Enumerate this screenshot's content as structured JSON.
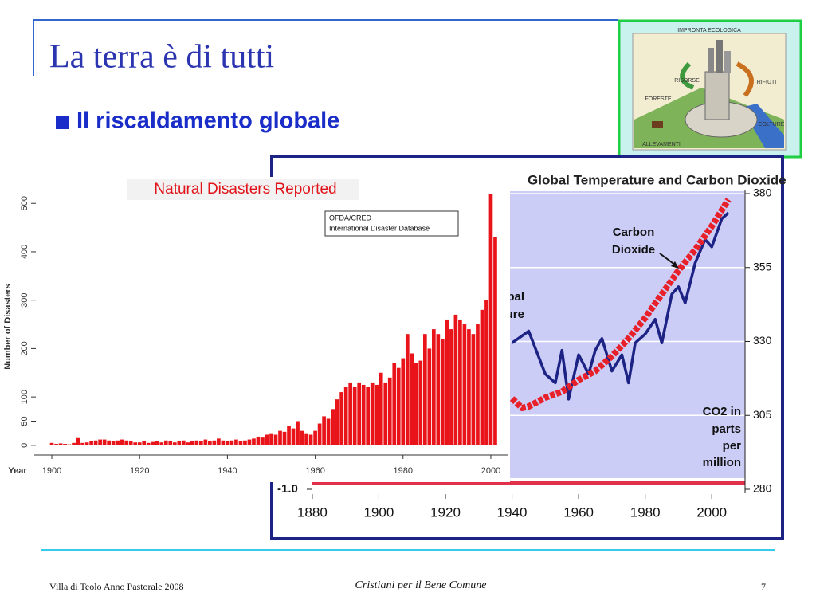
{
  "slide": {
    "title": "La terra è di tutti",
    "bullet": "Il riscaldamento globale",
    "footer_left": "Villa di Teolo Anno Pastorale 2008",
    "footer_center": "Cristiani per il Bene Comune",
    "page_number": "7"
  },
  "image_labels": [
    "IMPRONTA ECOLOGICA",
    "RISORSE",
    "RIFIUTI",
    "FORESTE",
    "COLTURE",
    "ALLEVAMENTI"
  ],
  "chart_data": [
    {
      "type": "bar",
      "title": "Natural Disasters Reported",
      "source_note": [
        "OFDA/CRED",
        "International Disaster Database"
      ],
      "x_label": "Year",
      "y_label": "Number of Disasters",
      "color": "#e8141a",
      "x": [
        1900,
        1901,
        1902,
        1903,
        1904,
        1905,
        1906,
        1907,
        1908,
        1909,
        1910,
        1911,
        1912,
        1913,
        1914,
        1915,
        1916,
        1917,
        1918,
        1919,
        1920,
        1921,
        1922,
        1923,
        1924,
        1925,
        1926,
        1927,
        1928,
        1929,
        1930,
        1931,
        1932,
        1933,
        1934,
        1935,
        1936,
        1937,
        1938,
        1939,
        1940,
        1941,
        1942,
        1943,
        1944,
        1945,
        1946,
        1947,
        1948,
        1949,
        1950,
        1951,
        1952,
        1953,
        1954,
        1955,
        1956,
        1957,
        1958,
        1959,
        1960,
        1961,
        1962,
        1963,
        1964,
        1965,
        1966,
        1967,
        1968,
        1969,
        1970,
        1971,
        1972,
        1973,
        1974,
        1975,
        1976,
        1977,
        1978,
        1979,
        1980,
        1981,
        1982,
        1983,
        1984,
        1985,
        1986,
        1987,
        1988,
        1989,
        1990,
        1991,
        1992,
        1993,
        1994,
        1995,
        1996,
        1997,
        1998,
        1999,
        2000,
        2001
      ],
      "values": [
        5,
        3,
        4,
        3,
        2,
        5,
        15,
        5,
        6,
        8,
        10,
        12,
        12,
        10,
        8,
        10,
        12,
        10,
        8,
        6,
        6,
        8,
        5,
        7,
        8,
        6,
        10,
        8,
        6,
        8,
        10,
        6,
        8,
        10,
        8,
        12,
        8,
        10,
        14,
        10,
        8,
        10,
        12,
        8,
        10,
        12,
        14,
        18,
        16,
        22,
        25,
        22,
        30,
        28,
        40,
        35,
        50,
        30,
        25,
        22,
        30,
        45,
        60,
        55,
        75,
        95,
        110,
        120,
        130,
        120,
        130,
        125,
        120,
        130,
        125,
        150,
        130,
        140,
        170,
        160,
        180,
        230,
        190,
        170,
        175,
        230,
        200,
        240,
        230,
        220,
        260,
        240,
        270,
        260,
        250,
        240,
        230,
        250,
        280,
        300,
        520,
        430
      ],
      "xlim": [
        1896,
        2004
      ],
      "xticks": [
        1900,
        1920,
        1940,
        1960,
        1980,
        2000
      ],
      "ylim": [
        -20,
        530
      ],
      "yticks": [
        0,
        50,
        100,
        200,
        300,
        400,
        500
      ]
    },
    {
      "type": "line",
      "title": "Global Temperature and Carbon Dioxide",
      "temperature_label": [
        "Global",
        "Temperature"
      ],
      "co2_label": [
        "Carbon",
        "Dioxide"
      ],
      "unit_label": [
        "CO2 in",
        "parts",
        "per",
        "million"
      ],
      "series": [
        {
          "color": "#1c2384",
          "x": [
            1940,
            1945,
            1950,
            1953,
            1955,
            1957,
            1960,
            1963,
            1965,
            1967,
            1970,
            1973,
            1975,
            1977,
            1980,
            1983,
            1985,
            1988,
            1990,
            1992,
            1995,
            1998,
            2000,
            2003,
            2005
          ],
          "values": [
            -0.01,
            0.07,
            -0.22,
            -0.28,
            -0.06,
            -0.39,
            -0.09,
            -0.22,
            -0.06,
            0.02,
            -0.2,
            -0.09,
            -0.28,
            -0.01,
            0.05,
            0.15,
            -0.01,
            0.32,
            0.37,
            0.26,
            0.53,
            0.69,
            0.64,
            0.83,
            0.87
          ]
        },
        {
          "color": "#e8202a",
          "axis": "y2",
          "x": [
            1940,
            1943,
            1945,
            1950,
            1955,
            1960,
            1965,
            1970,
            1975,
            1980,
            1985,
            1990,
            1995,
            2000,
            2005
          ],
          "values": [
            310.7,
            307.5,
            308,
            311,
            313,
            317,
            320,
            325,
            331,
            338,
            346,
            354,
            361,
            369,
            378
          ]
        }
      ],
      "xlim": [
        1875,
        2010
      ],
      "xticks": [
        1880,
        1900,
        1920,
        1940,
        1960,
        1980,
        2000
      ],
      "ylim": [
        -1.0,
        1.0
      ],
      "yticks": [
        {
          "value": -1.0,
          "label": "-1.0"
        }
      ],
      "y2lim": [
        280,
        380
      ],
      "y2ticks": [
        280,
        305,
        330,
        355,
        380
      ],
      "grid": true
    }
  ]
}
